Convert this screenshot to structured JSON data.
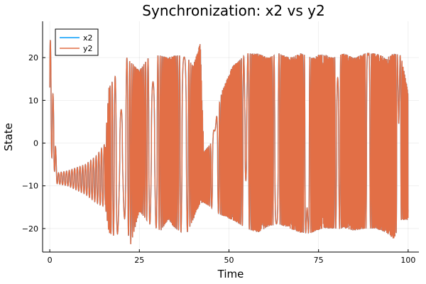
{
  "chart_data": {
    "type": "line",
    "title": "Synchronization: x2 vs y2",
    "xlabel": "Time",
    "ylabel": "State",
    "xlim": [
      -2,
      103
    ],
    "ylim": [
      -25.5,
      28.5
    ],
    "xticks": [
      0,
      25,
      50,
      75,
      100
    ],
    "yticks": [
      -20,
      -10,
      0,
      10,
      20
    ],
    "grid": true,
    "legend_position": "top-left",
    "series": [
      {
        "name": "x2",
        "color": "#009AFA"
      },
      {
        "name": "y2",
        "color": "#E26F46"
      }
    ],
    "envelope": [
      {
        "t": 0,
        "max": 27,
        "min": -1
      },
      {
        "t": 2,
        "max": -7,
        "min": -9.5
      },
      {
        "t": 5,
        "max": -6.5,
        "min": -10
      },
      {
        "t": 10,
        "max": -5,
        "min": -12
      },
      {
        "t": 13,
        "max": -3,
        "min": -14
      },
      {
        "t": 15.5,
        "max": 0,
        "min": -15
      },
      {
        "t": 16.5,
        "max": 13,
        "min": -21
      },
      {
        "t": 18.5,
        "max": 16,
        "min": -22
      },
      {
        "t": 21,
        "max": 20.5,
        "min": -17.5
      },
      {
        "t": 22.5,
        "max": 19,
        "min": -24
      },
      {
        "t": 25,
        "max": 17,
        "min": -16
      },
      {
        "t": 28,
        "max": 20.5,
        "min": -19
      },
      {
        "t": 31,
        "max": 20.5,
        "min": -20.5
      },
      {
        "t": 33,
        "max": 20,
        "min": -18
      },
      {
        "t": 35,
        "max": 20.5,
        "min": -20
      },
      {
        "t": 38,
        "max": 20.5,
        "min": -21.5
      },
      {
        "t": 40,
        "max": 18,
        "min": -18
      },
      {
        "t": 42,
        "max": 23.5,
        "min": -14
      },
      {
        "t": 43,
        "max": -2,
        "min": -14
      },
      {
        "t": 45,
        "max": 0,
        "min": -15
      },
      {
        "t": 48,
        "max": 12,
        "min": -17
      },
      {
        "t": 51,
        "max": 18,
        "min": -18
      },
      {
        "t": 55,
        "max": 21,
        "min": -20
      },
      {
        "t": 58,
        "max": 21,
        "min": -21
      },
      {
        "t": 61,
        "max": 20,
        "min": -19.5
      },
      {
        "t": 64,
        "max": 21,
        "min": -19
      },
      {
        "t": 67,
        "max": 20,
        "min": -20
      },
      {
        "t": 70,
        "max": 21,
        "min": -21
      },
      {
        "t": 73,
        "max": 20,
        "min": -21
      },
      {
        "t": 76,
        "max": 21,
        "min": -20
      },
      {
        "t": 79,
        "max": 20,
        "min": -20
      },
      {
        "t": 82,
        "max": 21,
        "min": -20
      },
      {
        "t": 85,
        "max": 20,
        "min": -20.5
      },
      {
        "t": 88,
        "max": 21,
        "min": -20
      },
      {
        "t": 91,
        "max": 21,
        "min": -20
      },
      {
        "t": 94,
        "max": 20,
        "min": -21
      },
      {
        "t": 96,
        "max": 21,
        "min": -22.5
      },
      {
        "t": 98,
        "max": 20.5,
        "min": -18
      },
      {
        "t": 100,
        "max": 12,
        "min": -18
      }
    ]
  }
}
